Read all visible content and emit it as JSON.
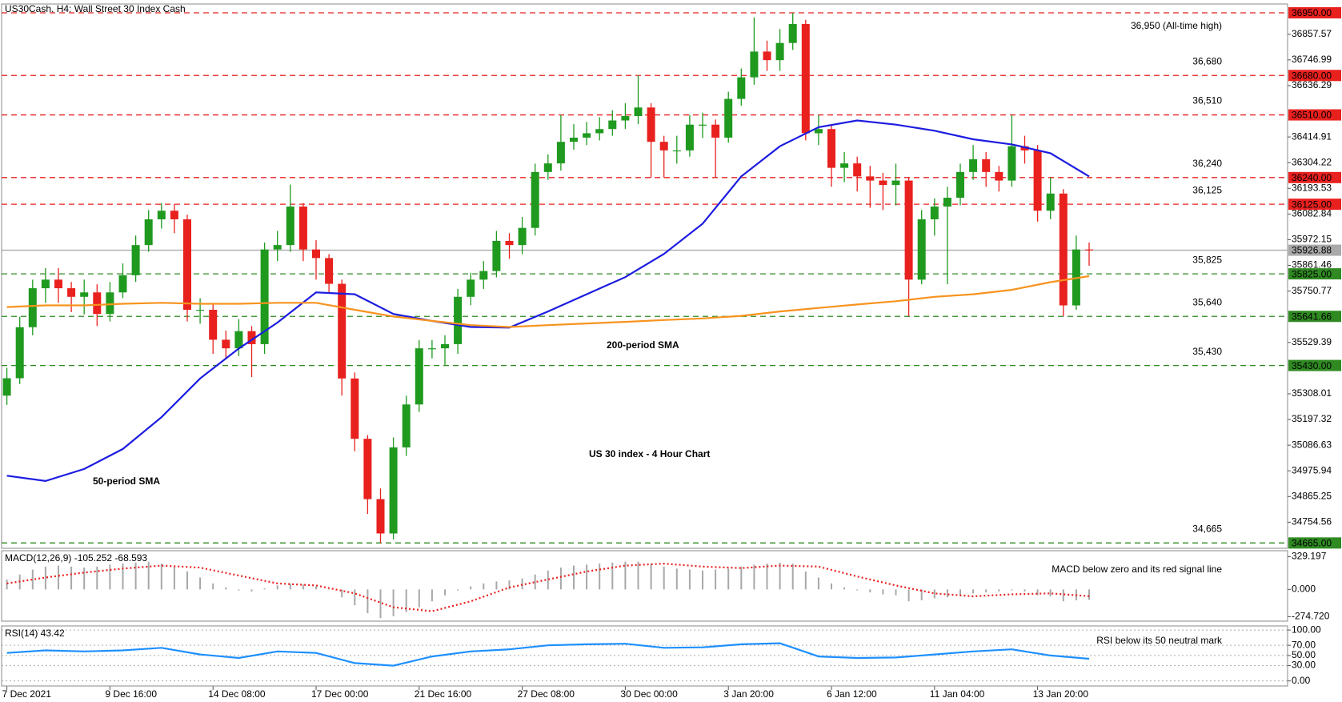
{
  "chart_data": [
    {
      "type": "candlestick",
      "title": "US 30 index - 4 Hour Chart",
      "subtitle": "US30Cash, H4:  Wall Street 30 Index Cash",
      "categories": [
        "7 Dec 2021",
        null,
        null,
        null,
        null,
        null,
        null,
        null,
        "9 Dec 16:00",
        null,
        null,
        null,
        null,
        null,
        null,
        null,
        "14 Dec 08:00",
        null,
        null,
        null,
        null,
        null,
        null,
        null,
        "17 Dec 00:00",
        null,
        null,
        null,
        null,
        null,
        null,
        null,
        "21 Dec 16:00",
        null,
        null,
        null,
        null,
        null,
        null,
        null,
        "27 Dec 08:00",
        null,
        null,
        null,
        null,
        null,
        null,
        null,
        "30 Dec 00:00",
        null,
        null,
        null,
        null,
        null,
        null,
        null,
        "3 Jan 20:00",
        null,
        null,
        null,
        null,
        null,
        null,
        null,
        "6 Jan 12:00",
        null,
        null,
        null,
        null,
        null,
        null,
        null,
        "11 Jan 04:00",
        null,
        null,
        null,
        null,
        null,
        null,
        null,
        "13 Jan 20:00",
        null,
        null,
        null,
        null
      ],
      "open": [
        35300,
        35375,
        35595,
        35763,
        35800,
        35763,
        35726,
        35745,
        35652,
        35745,
        35819,
        35949,
        36060,
        36097,
        36060,
        35670,
        35670,
        35541,
        35504,
        35578,
        35522,
        35930,
        35949,
        36115,
        35930,
        35893,
        35782,
        35374,
        35114,
        34854,
        34706,
        35077,
        35262,
        35504,
        35504,
        35522,
        35726,
        35800,
        35837,
        35967,
        35949,
        36023,
        36264,
        36301,
        36394,
        36412,
        36431,
        36449,
        36486,
        36505,
        36542,
        36394,
        36357,
        36357,
        36468,
        36468,
        36412,
        36579,
        36672,
        36783,
        36746,
        36820,
        36902,
        36431,
        36449,
        36282,
        36301,
        36245,
        36227,
        36208,
        36227,
        35800,
        36060,
        36115,
        36153,
        36264,
        36319,
        36264,
        36227,
        36375,
        36357,
        36097,
        36171,
        35689,
        35930
      ],
      "high": [
        35420,
        35640,
        35800,
        35850,
        35850,
        35790,
        35800,
        35780,
        35790,
        35870,
        35990,
        36100,
        36130,
        36125,
        36080,
        35720,
        35700,
        35580,
        35630,
        35600,
        35960,
        36010,
        36210,
        36130,
        35970,
        35910,
        35800,
        35400,
        35130,
        34900,
        35120,
        35300,
        35540,
        35540,
        35560,
        35760,
        35830,
        35880,
        36010,
        36000,
        36070,
        36300,
        36340,
        36510,
        36470,
        36480,
        36500,
        36530,
        36560,
        36680,
        36560,
        36420,
        36420,
        36510,
        36520,
        36490,
        36610,
        36710,
        36930,
        36830,
        36880,
        36950,
        36920,
        36510,
        36470,
        36350,
        36330,
        36290,
        36260,
        36300,
        36240,
        36100,
        36150,
        36200,
        36300,
        36380,
        36350,
        36290,
        36510,
        36420,
        36380,
        36240,
        36190,
        35990,
        35960
      ],
      "low": [
        35260,
        35350,
        35560,
        35700,
        35700,
        35660,
        35650,
        35600,
        35620,
        35720,
        35790,
        35920,
        36020,
        36000,
        35620,
        35610,
        35480,
        35460,
        35470,
        35380,
        35480,
        35880,
        35920,
        35880,
        35800,
        35740,
        35300,
        35060,
        34790,
        34665,
        34680,
        35040,
        35230,
        35460,
        35430,
        35480,
        35690,
        35760,
        35810,
        35890,
        35910,
        35990,
        36230,
        36270,
        36360,
        36380,
        36400,
        36420,
        36450,
        36470,
        36240,
        36240,
        36300,
        36330,
        36410,
        36240,
        36390,
        36550,
        36640,
        36700,
        36700,
        36790,
        36400,
        36380,
        36200,
        36220,
        36180,
        36110,
        36100,
        36120,
        35642,
        35780,
        35990,
        35780,
        36120,
        36230,
        36200,
        36180,
        36200,
        36300,
        36050,
        36060,
        35642,
        35670,
        35860
      ],
      "close": [
        35375,
        35595,
        35763,
        35800,
        35763,
        35726,
        35745,
        35652,
        35745,
        35819,
        35949,
        36060,
        36097,
        36060,
        35670,
        35670,
        35541,
        35504,
        35578,
        35522,
        35930,
        35949,
        36115,
        35930,
        35893,
        35782,
        35374,
        35114,
        34854,
        34706,
        35077,
        35262,
        35504,
        35504,
        35522,
        35726,
        35800,
        35837,
        35967,
        35949,
        36023,
        36264,
        36301,
        36394,
        36412,
        36431,
        36449,
        36486,
        36505,
        36542,
        36394,
        36357,
        36357,
        36468,
        36468,
        36412,
        36579,
        36672,
        36783,
        36746,
        36820,
        36902,
        36431,
        36449,
        36282,
        36301,
        36245,
        36227,
        36208,
        36227,
        35800,
        36060,
        36115,
        36153,
        36264,
        36319,
        36264,
        36227,
        36375,
        36357,
        36097,
        36171,
        35689,
        35930,
        35927
      ],
      "up_color": "#1f9a1f",
      "down_color": "#e8211e",
      "series": [
        {
          "name": "50-period SMA",
          "color": "#1c1ce0",
          "x": [
            0,
            3,
            6,
            9,
            12,
            15,
            18,
            21,
            24,
            27,
            30,
            33,
            36,
            39,
            42,
            45,
            48,
            51,
            54,
            57,
            60,
            63,
            66,
            69,
            72,
            75,
            78,
            81,
            84
          ],
          "values": [
            34955,
            34932,
            34984,
            35070,
            35207,
            35374,
            35503,
            35615,
            35745,
            35737,
            35652,
            35622,
            35596,
            35593,
            35663,
            35737,
            35811,
            35911,
            36041,
            36245,
            36375,
            36457,
            36486,
            36468,
            36442,
            36405,
            36383,
            36345,
            36245
          ]
        },
        {
          "name": "200-period SMA",
          "color": "#f7931e",
          "x": [
            0,
            3,
            6,
            9,
            12,
            15,
            18,
            21,
            24,
            27,
            30,
            33,
            36,
            39,
            42,
            45,
            48,
            51,
            54,
            57,
            60,
            63,
            66,
            69,
            72,
            75,
            78,
            81,
            84
          ],
          "values": [
            35682,
            35689,
            35689,
            35696,
            35700,
            35696,
            35696,
            35700,
            35700,
            35670,
            35641,
            35622,
            35604,
            35596,
            35604,
            35611,
            35618,
            35626,
            35633,
            35644,
            35663,
            35678,
            35693,
            35707,
            35726,
            35737,
            35756,
            35789,
            35815
          ]
        }
      ],
      "levels": [
        {
          "value": 36950,
          "label": "36950.00",
          "note": "36,950 (All-time high)",
          "color": "#e8211e",
          "style": "dashed"
        },
        {
          "value": 36680,
          "label": "36680.00",
          "note": "36,680",
          "color": "#e8211e",
          "style": "dashed"
        },
        {
          "value": 36510,
          "label": "36510.00",
          "note": "36,510",
          "color": "#e8211e",
          "style": "dashed"
        },
        {
          "value": 36240,
          "label": "36240.00",
          "note": "36,240",
          "color": "#e8211e",
          "style": "dashed"
        },
        {
          "value": 36125,
          "label": "36125.00",
          "note": "36,125",
          "color": "#e8211e",
          "style": "dashed"
        },
        {
          "value": 35926.88,
          "label": "35926.88",
          "color": "#a9a9a9",
          "style": "solid"
        },
        {
          "value": 35825,
          "label": "35825.00",
          "note": "35,825",
          "color": "#2f8a22",
          "style": "dashed"
        },
        {
          "value": 35641.66,
          "label": "35641.66",
          "note": "35,640",
          "color": "#2f8a22",
          "style": "dashed"
        },
        {
          "value": 35430,
          "label": "35430.00",
          "note": "35,430",
          "color": "#2f8a22",
          "style": "dashed"
        },
        {
          "value": 34665,
          "label": "34665.00",
          "note": "34,665",
          "color": "#2f8a22",
          "style": "dashed"
        }
      ],
      "ylim": [
        34642,
        36988
      ],
      "yticks": [
        36857.57,
        36746.99,
        36636.29,
        36414.91,
        36304.22,
        36193.53,
        36082.84,
        35972.15,
        35861.46,
        35750.77,
        35529.39,
        35308.01,
        35197.32,
        35086.63,
        34975.94,
        34865.25,
        34754.56
      ],
      "grid": false
    },
    {
      "type": "bar",
      "title": "MACD(12,26,9) -105.252 -68.593",
      "note": "MACD below zero and its red signal line",
      "series": [
        {
          "color": "#a8a8a8",
          "values": [
            100,
            150,
            200,
            230,
            240,
            230,
            220,
            230,
            250,
            260,
            270,
            280,
            260,
            230,
            180,
            120,
            60,
            20,
            -10,
            -20,
            10,
            40,
            60,
            50,
            30,
            0,
            -80,
            -160,
            -240,
            -290,
            -270,
            -230,
            -180,
            -120,
            -60,
            -10,
            30,
            60,
            80,
            90,
            110,
            150,
            190,
            220,
            240,
            250,
            260,
            270,
            280,
            280,
            260,
            230,
            210,
            200,
            190,
            200,
            210,
            230,
            250,
            260,
            270,
            260,
            180,
            120,
            60,
            20,
            -10,
            -30,
            -50,
            -60,
            -120,
            -110,
            -90,
            -80,
            -60,
            -40,
            -30,
            -20,
            -10,
            -20,
            -60,
            -70,
            -120,
            -110,
            -105.252
          ]
        },
        {
          "type": "line",
          "color": "#e8211e",
          "x": [
            0,
            3,
            6,
            9,
            12,
            15,
            18,
            21,
            24,
            27,
            30,
            33,
            36,
            39,
            42,
            45,
            48,
            51,
            54,
            57,
            60,
            63,
            66,
            69,
            72,
            75,
            78,
            81,
            84
          ],
          "values": [
            60,
            120,
            170,
            210,
            240,
            220,
            140,
            60,
            40,
            -40,
            -180,
            -220,
            -120,
            20,
            100,
            180,
            240,
            260,
            230,
            215,
            240,
            230,
            130,
            40,
            -40,
            -70,
            -50,
            -40,
            -68.593
          ]
        }
      ],
      "ylim": [
        -320,
        390
      ],
      "yticks": [
        329.197,
        {
          "value": 0,
          "label": "0.000"
        },
        {
          "value": -274.72,
          "label": "-274.720"
        }
      ],
      "grid": false
    },
    {
      "type": "line",
      "title": "RSI(14) 43.42",
      "note": "RSI below its 50 neutral mark",
      "series": [
        {
          "color": "#1e90ff",
          "x": [
            0,
            3,
            6,
            9,
            12,
            15,
            18,
            21,
            24,
            27,
            30,
            33,
            36,
            39,
            42,
            45,
            48,
            51,
            54,
            57,
            60,
            63,
            66,
            69,
            72,
            75,
            78,
            81,
            84
          ],
          "values": [
            55,
            60,
            58,
            60,
            65,
            52,
            45,
            58,
            55,
            35,
            30,
            48,
            58,
            62,
            70,
            72,
            73,
            65,
            66,
            72,
            74,
            48,
            45,
            46,
            52,
            58,
            62,
            50,
            43.42
          ]
        }
      ],
      "ylim": [
        -10,
        108
      ],
      "yticks": [
        {
          "value": 100,
          "label": "100.00"
        },
        {
          "value": 70,
          "label": "70.00"
        },
        {
          "value": 50,
          "label": "50.00"
        },
        {
          "value": 30,
          "label": "30.00"
        },
        {
          "value": 0,
          "label": "0.00"
        }
      ],
      "grid": true
    }
  ]
}
